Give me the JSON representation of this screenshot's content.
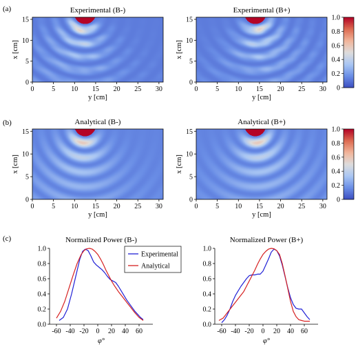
{
  "panel_labels": [
    "(a)",
    "(b)",
    "(c)"
  ],
  "colormap": {
    "stops": [
      "#3b4cc0",
      "#6a8ee6",
      "#a9c6f3",
      "#dddcdc",
      "#f1b59b",
      "#dd6c52",
      "#b40426"
    ],
    "colorbar_ticks": [
      "0",
      "0.2",
      "0.4",
      "0.6",
      "0.8",
      "1.0"
    ]
  },
  "maps": [
    {
      "title": "Experimental (B-)",
      "xlabel": "y [cm]",
      "ylabel": "x [cm]",
      "x_ticks": [
        "0",
        "5",
        "10",
        "15",
        "20",
        "25",
        "30"
      ],
      "y_ticks": [
        "0",
        "5",
        "10",
        "15"
      ],
      "xlim": [
        0,
        31
      ],
      "ylim": [
        0,
        15.5
      ],
      "source": [
        12.5,
        16.5
      ],
      "kind": "experimental",
      "tilt": -0.2,
      "has_colorbar": false
    },
    {
      "title": "Experimental (B+)",
      "xlabel": "y [cm]",
      "ylabel": "x [cm]",
      "x_ticks": [
        "0",
        "5",
        "10",
        "15",
        "20",
        "25",
        "30"
      ],
      "y_ticks": [
        "0",
        "5",
        "10",
        "15"
      ],
      "xlim": [
        0,
        31
      ],
      "ylim": [
        0,
        15.5
      ],
      "source": [
        14,
        16.5
      ],
      "kind": "experimental",
      "tilt": 0.2,
      "has_colorbar": true
    },
    {
      "title": "Analytical (B-)",
      "xlabel": "y [cm]",
      "ylabel": "x [cm]",
      "x_ticks": [
        "0",
        "5",
        "10",
        "15",
        "20",
        "25",
        "30"
      ],
      "y_ticks": [
        "0",
        "5",
        "10",
        "15"
      ],
      "xlim": [
        0,
        31
      ],
      "ylim": [
        0,
        15.5
      ],
      "source": [
        12.5,
        16.5
      ],
      "kind": "analytical",
      "tilt": -0.15,
      "has_colorbar": false
    },
    {
      "title": "Analytical (B+)",
      "xlabel": "y [cm]",
      "ylabel": "x [cm]",
      "x_ticks": [
        "0",
        "5",
        "10",
        "15",
        "20",
        "25",
        "30"
      ],
      "y_ticks": [
        "0",
        "5",
        "10",
        "15"
      ],
      "xlim": [
        0,
        31
      ],
      "ylim": [
        0,
        15.5
      ],
      "source": [
        14,
        16.5
      ],
      "kind": "analytical",
      "tilt": 0.15,
      "has_colorbar": true
    }
  ],
  "chart_data": [
    {
      "type": "heatmap",
      "title": "Experimental (B-)",
      "xlabel": "y [cm]",
      "ylabel": "x [cm]",
      "xlim": [
        0,
        31
      ],
      "ylim": [
        0,
        15.5
      ],
      "clim": [
        0,
        1.0
      ]
    },
    {
      "type": "heatmap",
      "title": "Experimental (B+)",
      "xlabel": "y [cm]",
      "ylabel": "x [cm]",
      "xlim": [
        0,
        31
      ],
      "ylim": [
        0,
        15.5
      ],
      "clim": [
        0,
        1.0
      ]
    },
    {
      "type": "heatmap",
      "title": "Analytical (B-)",
      "xlabel": "y [cm]",
      "ylabel": "x [cm]",
      "xlim": [
        0,
        31
      ],
      "ylim": [
        0,
        15.5
      ],
      "clim": [
        0,
        1.0
      ]
    },
    {
      "type": "heatmap",
      "title": "Analytical (B+)",
      "xlabel": "y [cm]",
      "ylabel": "x [cm]",
      "xlim": [
        0,
        31
      ],
      "ylim": [
        0,
        15.5
      ],
      "clim": [
        0,
        1.0
      ]
    },
    {
      "type": "line",
      "title": "Normalized Power (B-)",
      "xlabel": "φ°",
      "ylabel": "",
      "xlim": [
        -70,
        80
      ],
      "ylim": [
        0,
        1.0
      ],
      "x_ticks": [
        "-60",
        "-40",
        "-20",
        "0",
        "20",
        "40",
        "60"
      ],
      "y_ticks": [
        "0.0",
        "0.2",
        "0.4",
        "0.6",
        "0.8",
        "1.0"
      ],
      "legend_position": "top-right",
      "series": [
        {
          "name": "Experimental",
          "color": "#1f1fd6",
          "x": [
            -56,
            -50,
            -44,
            -38,
            -32,
            -26,
            -22,
            -18,
            -14,
            -10,
            -6,
            -2,
            2,
            6,
            10,
            14,
            18,
            22,
            26,
            30,
            34,
            38,
            42,
            46,
            50,
            54,
            58,
            62,
            66
          ],
          "y": [
            0.05,
            0.09,
            0.2,
            0.4,
            0.63,
            0.86,
            0.96,
            0.99,
            0.97,
            0.9,
            0.82,
            0.78,
            0.75,
            0.72,
            0.68,
            0.63,
            0.59,
            0.57,
            0.55,
            0.5,
            0.44,
            0.38,
            0.32,
            0.27,
            0.22,
            0.17,
            0.13,
            0.09,
            0.06
          ]
        },
        {
          "name": "Analytical",
          "color": "#d62020",
          "x": [
            -60,
            -54,
            -48,
            -42,
            -36,
            -30,
            -24,
            -20,
            -16,
            -12,
            -8,
            -4,
            0,
            4,
            8,
            12,
            16,
            20,
            24,
            30,
            36,
            42,
            48,
            54,
            60,
            66
          ],
          "y": [
            0.08,
            0.17,
            0.3,
            0.47,
            0.64,
            0.8,
            0.92,
            0.97,
            0.995,
            1.0,
            0.99,
            0.96,
            0.92,
            0.86,
            0.79,
            0.71,
            0.64,
            0.57,
            0.51,
            0.43,
            0.36,
            0.29,
            0.22,
            0.15,
            0.09,
            0.05
          ]
        }
      ]
    },
    {
      "type": "line",
      "title": "Normalized Power (B+)",
      "xlabel": "φ°",
      "ylabel": "",
      "xlim": [
        -70,
        80
      ],
      "ylim": [
        0,
        1.0
      ],
      "x_ticks": [
        "-60",
        "-40",
        "-20",
        "0",
        "20",
        "40",
        "60"
      ],
      "y_ticks": [
        "0.0",
        "0.2",
        "0.4",
        "0.6",
        "0.8",
        "1.0"
      ],
      "series": [
        {
          "name": "Experimental",
          "color": "#1f1fd6",
          "x": [
            -60,
            -56,
            -52,
            -48,
            -44,
            -40,
            -36,
            -32,
            -28,
            -24,
            -20,
            -16,
            -12,
            -8,
            -4,
            0,
            4,
            8,
            12,
            16,
            20,
            24,
            28,
            32,
            36,
            40,
            44,
            48,
            52,
            56,
            60,
            64,
            68
          ],
          "y": [
            0.02,
            0.06,
            0.12,
            0.2,
            0.3,
            0.38,
            0.44,
            0.5,
            0.55,
            0.6,
            0.64,
            0.65,
            0.65,
            0.66,
            0.66,
            0.7,
            0.78,
            0.86,
            0.95,
            0.99,
            0.97,
            0.9,
            0.78,
            0.63,
            0.48,
            0.35,
            0.26,
            0.21,
            0.2,
            0.2,
            0.15,
            0.1,
            0.06
          ]
        },
        {
          "name": "Analytical",
          "color": "#d62020",
          "x": [
            -64,
            -58,
            -52,
            -46,
            -40,
            -34,
            -28,
            -24,
            -20,
            -16,
            -12,
            -8,
            -4,
            0,
            4,
            8,
            12,
            16,
            20,
            24,
            28,
            32,
            36,
            40,
            44,
            48,
            52,
            56,
            60,
            64,
            68
          ],
          "y": [
            0.05,
            0.08,
            0.15,
            0.22,
            0.29,
            0.36,
            0.43,
            0.5,
            0.57,
            0.64,
            0.71,
            0.79,
            0.86,
            0.92,
            0.96,
            0.99,
            1.0,
            0.995,
            0.97,
            0.92,
            0.8,
            0.64,
            0.47,
            0.3,
            0.17,
            0.1,
            0.06,
            0.05,
            0.04,
            0.04,
            0.04
          ]
        }
      ]
    }
  ]
}
